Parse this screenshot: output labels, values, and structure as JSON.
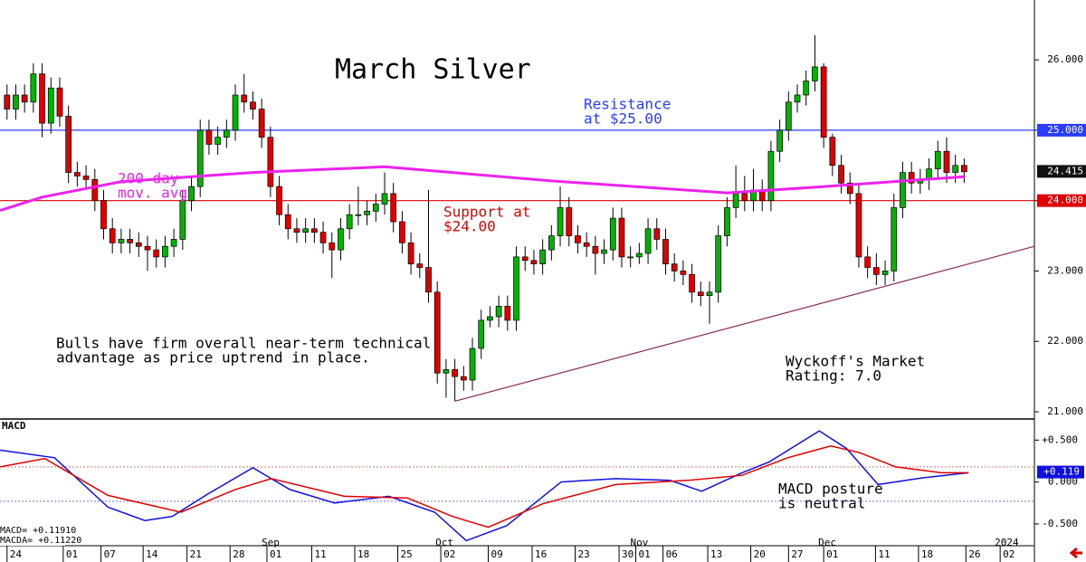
{
  "chart_data": {
    "type": "candlestick",
    "title": "March Silver",
    "panel_label": "MACD",
    "up_color": "#00b400",
    "down_color": "#e00000",
    "xlim": [
      -0.8,
      117
    ],
    "xticks": [
      {
        "value": 0,
        "label": "24"
      },
      {
        "value": 6.4,
        "label": "01"
      },
      {
        "value": 10.7,
        "label": "07"
      },
      {
        "value": 15.5,
        "label": "14"
      },
      {
        "value": 20.5,
        "label": "21"
      },
      {
        "value": 25.4,
        "label": "28"
      },
      {
        "value": 29.6,
        "label": "01"
      },
      {
        "value": 34.7,
        "label": "11"
      },
      {
        "value": 39.6,
        "label": "18"
      },
      {
        "value": 44.5,
        "label": "25"
      },
      {
        "value": 49.4,
        "label": "02"
      },
      {
        "value": 54.8,
        "label": "09"
      },
      {
        "value": 59.8,
        "label": "16"
      },
      {
        "value": 64.7,
        "label": "23"
      },
      {
        "value": 69.7,
        "label": "30"
      },
      {
        "value": 71.6,
        "label": "01"
      },
      {
        "value": 74.7,
        "label": "06"
      },
      {
        "value": 79.8,
        "label": "13"
      },
      {
        "value": 84.7,
        "label": "20"
      },
      {
        "value": 89,
        "label": "27"
      },
      {
        "value": 93,
        "label": "01"
      },
      {
        "value": 98.9,
        "label": "11"
      },
      {
        "value": 103.8,
        "label": "18"
      },
      {
        "value": 109.2,
        "label": "26"
      },
      {
        "value": 113.1,
        "label": "02"
      }
    ],
    "months": [
      {
        "value": 29.6,
        "label": "Sep"
      },
      {
        "value": 49.4,
        "label": "Oct"
      },
      {
        "value": 71.6,
        "label": "Nov"
      },
      {
        "value": 93,
        "label": "Dec"
      },
      {
        "value": 113.1,
        "label": "2024"
      }
    ],
    "ylim": [
      20.91,
      26.85
    ],
    "yticks": [
      {
        "value": 21,
        "label": "21.000"
      },
      {
        "value": 22,
        "label": "22.000"
      },
      {
        "value": 23,
        "label": "23.000"
      },
      {
        "value": 24,
        "label": "24.000"
      },
      {
        "value": 25,
        "label": "25.000"
      },
      {
        "value": 26,
        "label": "26.000"
      }
    ],
    "resistance": {
      "value": 25,
      "color": "#2a3cff"
    },
    "support": {
      "value": 24,
      "color": "#e00000"
    },
    "last_price": {
      "value": 24.415,
      "label": "24.415"
    },
    "open": [
      25.5,
      25.3,
      25.5,
      25.4,
      25.8,
      25.1,
      25.6,
      25.2,
      24.4,
      24.35,
      24.3,
      24.0,
      23.6,
      23.4,
      23.45,
      23.4,
      23.35,
      23.3,
      23.2,
      23.35,
      23.45,
      24.0,
      24.2,
      25.0,
      24.8,
      24.9,
      25.0,
      25.5,
      25.4,
      25.3,
      24.9,
      24.2,
      23.8,
      23.6,
      23.55,
      23.6,
      23.55,
      23.4,
      23.3,
      23.6,
      23.8,
      23.8,
      23.85,
      23.95,
      24.1,
      23.7,
      23.4,
      23.1,
      23.05,
      22.7,
      21.55,
      21.6,
      21.5,
      21.45,
      21.9,
      22.3,
      22.35,
      22.5,
      22.3,
      23.2,
      23.15,
      23.1,
      23.3,
      23.5,
      23.9,
      23.5,
      23.4,
      23.35,
      23.25,
      23.3,
      23.75,
      23.2,
      23.2,
      23.25,
      23.6,
      23.45,
      23.1,
      23.0,
      22.95,
      22.7,
      22.65,
      22.7,
      23.5,
      23.9,
      24.1,
      24.0,
      24.15,
      24.0,
      24.7,
      25.0,
      25.4,
      25.5,
      25.7,
      25.9,
      24.9,
      24.5,
      24.25,
      24.1,
      23.2,
      23.05,
      22.95,
      23.0,
      23.9,
      24.4,
      24.25,
      24.3,
      24.45,
      24.7,
      24.4,
      24.5
    ],
    "high": [
      25.65,
      25.65,
      25.65,
      25.95,
      25.95,
      25.75,
      25.75,
      25.35,
      24.55,
      24.5,
      24.45,
      24.15,
      23.75,
      23.6,
      23.6,
      23.55,
      23.5,
      23.45,
      23.5,
      23.6,
      24.15,
      24.35,
      25.15,
      25.15,
      25.05,
      25.15,
      25.65,
      25.8,
      25.55,
      25.45,
      25.05,
      24.35,
      23.95,
      23.75,
      23.75,
      23.75,
      23.7,
      23.55,
      23.75,
      23.95,
      24.2,
      24.0,
      24.1,
      24.4,
      24.25,
      23.85,
      23.55,
      23.25,
      24.15,
      22.85,
      21.75,
      21.75,
      21.65,
      22.05,
      22.45,
      22.5,
      22.65,
      22.65,
      23.35,
      23.35,
      23.3,
      23.45,
      23.65,
      24.2,
      24.05,
      23.65,
      23.55,
      23.5,
      23.45,
      23.9,
      23.9,
      23.35,
      23.4,
      23.75,
      23.75,
      23.6,
      23.25,
      23.15,
      23.1,
      22.85,
      22.85,
      23.65,
      24.05,
      24.5,
      24.35,
      24.45,
      24.3,
      24.85,
      25.15,
      25.55,
      25.65,
      25.85,
      26.35,
      25.95,
      24.95,
      24.65,
      24.4,
      24.25,
      23.35,
      23.25,
      23.15,
      24.1,
      24.55,
      24.55,
      24.45,
      24.6,
      24.85,
      24.9,
      24.65,
      24.6
    ],
    "low": [
      25.15,
      25.15,
      25.25,
      25.25,
      24.9,
      24.95,
      25.05,
      24.25,
      24.2,
      24.15,
      23.85,
      23.45,
      23.25,
      23.25,
      23.25,
      23.2,
      23.0,
      23.05,
      23.05,
      23.2,
      23.3,
      23.85,
      24.05,
      24.65,
      24.65,
      24.75,
      24.85,
      25.25,
      25.15,
      24.75,
      24.05,
      23.65,
      23.45,
      23.4,
      23.4,
      23.4,
      23.25,
      22.9,
      23.15,
      23.45,
      23.65,
      23.65,
      23.7,
      23.8,
      23.55,
      23.25,
      22.95,
      22.9,
      22.55,
      21.4,
      21.2,
      21.15,
      21.3,
      21.3,
      21.75,
      22.2,
      22.2,
      22.15,
      22.15,
      23.0,
      22.95,
      22.95,
      23.15,
      23.35,
      23.35,
      23.25,
      23.2,
      22.95,
      23.1,
      23.15,
      23.05,
      23.05,
      23.1,
      23.1,
      23.3,
      22.95,
      22.85,
      22.8,
      22.55,
      22.5,
      22.25,
      22.55,
      23.35,
      23.75,
      23.85,
      23.85,
      23.85,
      23.85,
      24.55,
      24.85,
      25.25,
      25.35,
      25.55,
      24.75,
      24.35,
      24.1,
      23.95,
      23.05,
      22.9,
      22.8,
      22.8,
      22.85,
      23.75,
      24.1,
      24.1,
      24.15,
      24.3,
      24.25,
      24.25,
      24.25
    ],
    "close": [
      25.3,
      25.5,
      25.4,
      25.8,
      25.1,
      25.6,
      25.2,
      24.4,
      24.35,
      24.3,
      24.0,
      23.6,
      23.4,
      23.45,
      23.4,
      23.35,
      23.3,
      23.2,
      23.35,
      23.45,
      24.0,
      24.2,
      25.0,
      24.8,
      24.9,
      25.0,
      25.5,
      25.4,
      25.3,
      24.9,
      24.2,
      23.8,
      23.6,
      23.55,
      23.6,
      23.55,
      23.4,
      23.3,
      23.6,
      23.8,
      23.8,
      23.85,
      23.95,
      24.1,
      23.7,
      23.4,
      23.1,
      23.05,
      22.7,
      21.55,
      21.6,
      21.5,
      21.45,
      21.9,
      22.3,
      22.35,
      22.5,
      22.3,
      23.2,
      23.15,
      23.1,
      23.3,
      23.5,
      23.9,
      23.5,
      23.4,
      23.35,
      23.25,
      23.3,
      23.75,
      23.2,
      23.2,
      23.25,
      23.6,
      23.45,
      23.1,
      23.0,
      22.95,
      22.7,
      22.65,
      22.7,
      23.5,
      23.9,
      24.1,
      24.0,
      24.15,
      24.0,
      24.7,
      25.0,
      25.4,
      25.5,
      25.7,
      25.9,
      24.9,
      24.5,
      24.25,
      24.1,
      23.2,
      23.05,
      22.95,
      23.0,
      23.9,
      24.4,
      24.25,
      24.3,
      24.45,
      24.7,
      24.4,
      24.5,
      24.41
    ],
    "moving_average": {
      "color": "#ee22ee",
      "x": [
        -0.8,
        4,
        13,
        20,
        28,
        43,
        62,
        82,
        92,
        109
      ],
      "values": [
        23.86,
        24.05,
        24.27,
        24.33,
        24.4,
        24.48,
        24.28,
        24.11,
        24.19,
        24.34
      ]
    },
    "trendline": {
      "color": "#8a2a5a",
      "x": [
        51,
        117
      ],
      "values": [
        21.15,
        23.35
      ]
    },
    "annotations": [
      {
        "lines": [
          "Resistance",
          "at $25.00"
        ],
        "color": "#2a3cff"
      },
      {
        "lines": [
          "200-day",
          "mov. avg"
        ],
        "color": "#ee22ee"
      },
      {
        "lines": [
          "Support at",
          "$24.00"
        ],
        "color": "#e00000"
      },
      {
        "lines": [
          "Bulls have firm overall near-term technical",
          "advantage as price uptrend in place."
        ],
        "color": "#000000"
      },
      {
        "lines": [
          "Wyckoff's Market",
          "Rating: 7.0"
        ],
        "color": "#000000"
      },
      {
        "lines": [
          "MACD posture",
          "is neutral"
        ],
        "color": "#000000"
      }
    ],
    "macd": {
      "ylim": [
        -0.76,
        0.73
      ],
      "yticks": [
        {
          "value": -0.5,
          "label": "-0.500"
        },
        {
          "value": 0,
          "label": "0.000"
        },
        {
          "value": 0.5,
          "label": "+0.500"
        }
      ],
      "reference_levels": [
        {
          "value": 0.18,
          "color": "#e06060"
        },
        {
          "value": -0.23,
          "color": "#6060e0"
        }
      ],
      "last": {
        "value": 0.119,
        "label": "+0.119"
      },
      "readouts": [
        "MACD=  +0.11910",
        "MACDA= +0.11220"
      ],
      "series": [
        {
          "color": "#1010e0",
          "x": [
            -0.8,
            5.4,
            11.5,
            15.7,
            18.8,
            22.9,
            28,
            32.2,
            37.3,
            43.5,
            48.7,
            52.3,
            56.9,
            63.1,
            69.3,
            75.5,
            79.1,
            83.7,
            86.8,
            92.5,
            95.6,
            99.2,
            104.3,
            109.5
          ],
          "values": [
            0.38,
            0.29,
            -0.3,
            -0.46,
            -0.41,
            -0.14,
            0.17,
            -0.09,
            -0.25,
            -0.17,
            -0.36,
            -0.7,
            -0.52,
            0.0,
            0.04,
            0.02,
            -0.11,
            0.11,
            0.24,
            0.61,
            0.4,
            -0.03,
            0.05,
            0.11
          ]
        },
        {
          "color": "#e00000",
          "x": [
            -0.8,
            4.3,
            11.5,
            19.8,
            26,
            30.1,
            38.4,
            45.6,
            50.7,
            54.8,
            61,
            69.3,
            77.5,
            83.7,
            88.9,
            93.8,
            97.1,
            101.2,
            106.4,
            109.5
          ],
          "values": [
            0.18,
            0.28,
            -0.16,
            -0.36,
            -0.09,
            0.04,
            -0.17,
            -0.19,
            -0.41,
            -0.54,
            -0.26,
            -0.03,
            0.02,
            0.08,
            0.29,
            0.43,
            0.35,
            0.18,
            0.11,
            0.11
          ]
        }
      ]
    }
  }
}
